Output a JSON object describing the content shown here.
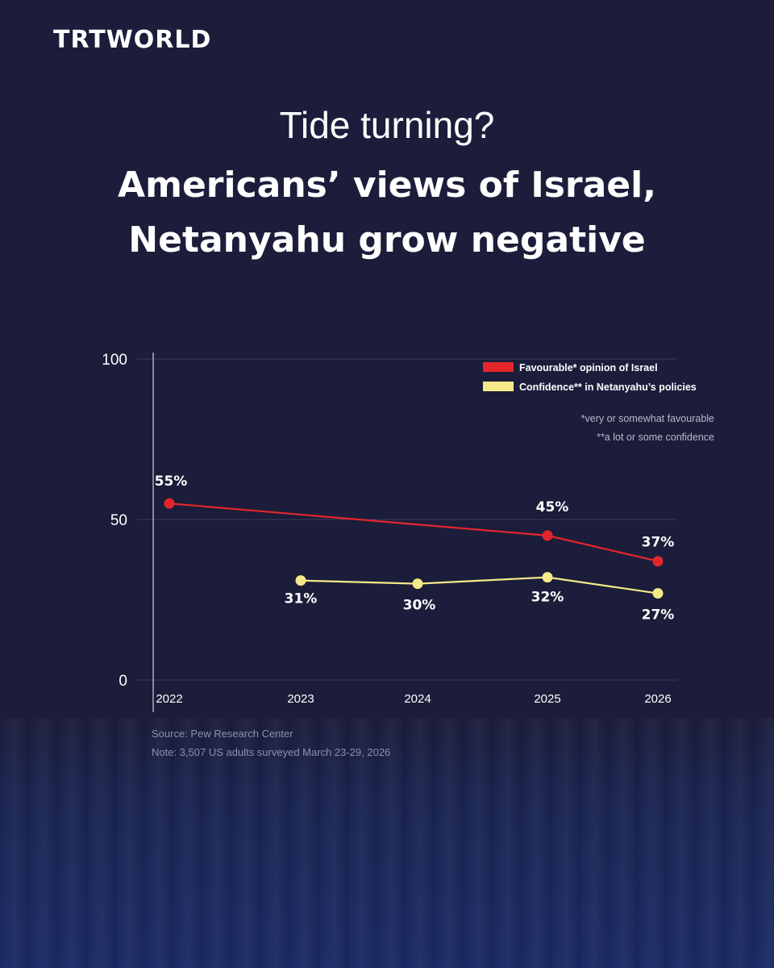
{
  "brand": "TRTWORLD",
  "title_top": "Tide turning?",
  "title_line1": "Americans’ views of Israel,",
  "title_line2": "Netanyahu grow negative",
  "colors": {
    "background": "#1b1d3a",
    "israel_series": "#e3262b",
    "netanyahu_series": "#f6e98a"
  },
  "chart_data": {
    "type": "line",
    "x": [
      "2022",
      "2023",
      "2024",
      "2025",
      "2026"
    ],
    "ylim": [
      0,
      100
    ],
    "yticks": [
      "0",
      "50",
      "100"
    ],
    "series": [
      {
        "name": "Favourable* opinion of Israel",
        "color": "#e3262b",
        "values": [
          55,
          null,
          null,
          45,
          37
        ],
        "labels": [
          "55%",
          null,
          null,
          "45%",
          "37%"
        ]
      },
      {
        "name": "Confidence** in Netanyahu’s policies",
        "color": "#f6e98a",
        "values": [
          null,
          31,
          30,
          32,
          27
        ],
        "labels": [
          null,
          "31%",
          "30%",
          "32%",
          "27%"
        ]
      }
    ],
    "footnotes": [
      "*very or somewhat favourable",
      "**a lot or some confidence"
    ],
    "grid": true,
    "legend_position": "top-right"
  },
  "source": "Source: Pew Research Center",
  "note": "Note: 3,507 US adults surveyed March 23-29, 2026"
}
